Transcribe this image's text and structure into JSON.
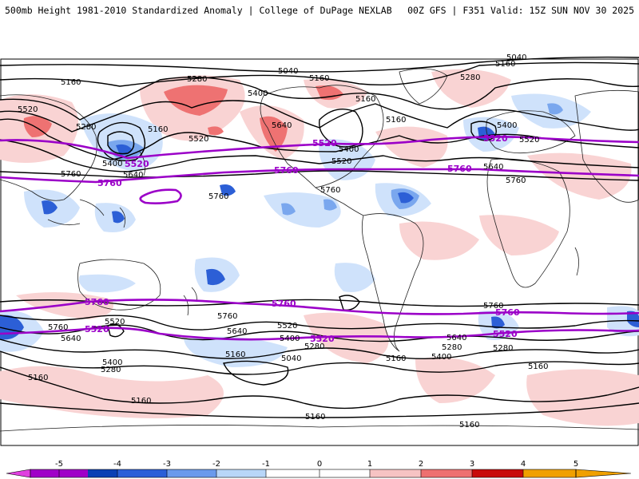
{
  "header": {
    "left": "500mb Height 1981-2010 Standardized Anomaly | College of DuPage NEXLAB",
    "right": "00Z GFS | F351 Valid: 15Z SUN NOV 30 2025"
  },
  "contour_labels": {
    "black": [
      "5040",
      "5160",
      "5280",
      "5400",
      "5520",
      "5640",
      "5760"
    ],
    "purple": [
      "5520",
      "5760"
    ]
  },
  "colorbar": {
    "ticks": [
      "-5",
      "-4",
      "-3",
      "-2",
      "-1",
      "0",
      "1",
      "2",
      "3",
      "4",
      "5"
    ],
    "colors": [
      "#a000c8",
      "#0a3fb4",
      "#2a5fd8",
      "#6a9aec",
      "#b8d6f8",
      "#ffffff",
      "#ffffff",
      "#f6c3c3",
      "#ee7070",
      "#c80a0a",
      "#f0a000"
    ]
  },
  "colors": {
    "neg_light": "#cfe2fb",
    "neg_mid": "#7aa7ee",
    "neg_dark": "#2c5fd6",
    "pos_light": "#f9d3d3",
    "pos_mid": "#ee7272",
    "pos_dark": "#e34848",
    "purple_line": "#9b00c8"
  }
}
